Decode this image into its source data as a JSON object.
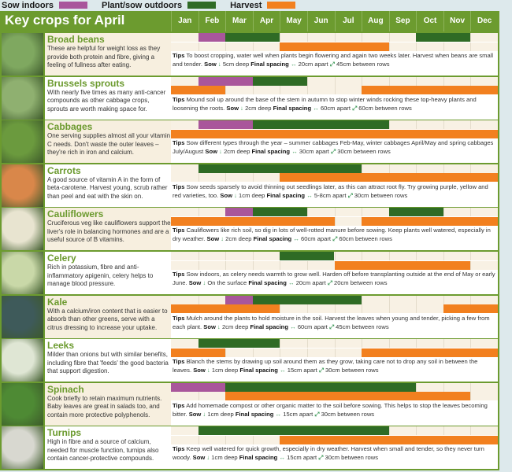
{
  "legend": [
    {
      "label": "Sow indoors",
      "color": "#a9569b"
    },
    {
      "label": "Plant/sow outdoors",
      "color": "#2f6b25"
    },
    {
      "label": "Harvest",
      "color": "#f2801f"
    }
  ],
  "title": "Key crops for April",
  "months": [
    "Jan",
    "Feb",
    "Mar",
    "Apr",
    "May",
    "Jun",
    "Jul",
    "Aug",
    "Sep",
    "Oct",
    "Nov",
    "Dec"
  ],
  "labels": {
    "tips": "Tips",
    "sow": "Sow",
    "final_spacing": "Final spacing"
  },
  "icons": {
    "sow": "down-arrow-icon",
    "apart": "left-right-arrow-icon",
    "rows": "diagonal-arrow-icon"
  },
  "colors": {
    "sow_indoors": "#a9569b",
    "plant_outdoors": "#2f6b25",
    "harvest": "#f2801f",
    "photo": [
      "#7fa860",
      "#8fb070",
      "#6b9a3e",
      "#d9874a",
      "#e8e4d0",
      "#c9d8a8",
      "#3e5a5a",
      "#dfe6d4",
      "#4e8a34",
      "#d8d8d0"
    ]
  },
  "crops": [
    {
      "name": "Broad beans",
      "desc": "These are helpful for weight loss as they provide both protein and fibre, giving a feeling of fullness after eating.",
      "top": [
        [
          1,
          1,
          "s"
        ],
        [
          2,
          3,
          "p"
        ],
        [
          9,
          10,
          "p"
        ]
      ],
      "bottom": [
        [
          4,
          7,
          "h"
        ]
      ],
      "tip": "To boost cropping, water well when plants begin flowering and again two weeks later. Harvest when beans are small and tender.",
      "sow": "5cm deep",
      "apart": "20cm apart",
      "rows": "45cm between rows"
    },
    {
      "name": "Brussels sprouts",
      "desc": "With nearly five times as many anti-cancer compounds as other cabbage crops, sprouts are worth making space for.",
      "top": [
        [
          1,
          2,
          "s"
        ],
        [
          3,
          4,
          "p"
        ]
      ],
      "bottom": [
        [
          0,
          1,
          "h"
        ],
        [
          7,
          11,
          "h"
        ]
      ],
      "tip": "Mound soil up around the base of the stem in autumn to stop winter winds rocking these top-heavy plants and loosening the roots.",
      "sow": "2cm deep",
      "apart": "60cm apart",
      "rows": "60cm between rows"
    },
    {
      "name": "Cabbages",
      "desc": "One serving supplies almost all your vitamin C needs. Don't waste the outer leaves – they're rich in iron and calcium.",
      "top": [
        [
          1,
          2,
          "s"
        ],
        [
          3,
          7,
          "p"
        ]
      ],
      "bottom": [
        [
          0,
          11,
          "h"
        ]
      ],
      "tip": "Sow different types through the year – summer cabbages Feb-May, winter cabbages April/May and spring cabbages July/August",
      "sow": "2cm deep",
      "apart": "30cm apart",
      "rows": "30cm between rows"
    },
    {
      "name": "Carrots",
      "desc": "A good source of vitamin A in the form of beta-carotene. Harvest young, scrub rather than peel and eat with the skin on.",
      "top": [
        [
          1,
          6,
          "p"
        ]
      ],
      "bottom": [
        [
          4,
          11,
          "h"
        ]
      ],
      "tip": "Sow seeds sparsely to avoid thinning out seedlings later, as this can attract root fly. Try growing purple, yellow and red varieties, too.",
      "sow": "1cm deep",
      "apart": "5-8cm apart",
      "rows": "30cm between rows"
    },
    {
      "name": "Cauliflowers",
      "desc": "Cruciferous veg like cauliflowers support the liver's role in balancing hormones and are a useful source of B vitamins.",
      "top": [
        [
          2,
          2,
          "s"
        ],
        [
          3,
          4,
          "p"
        ],
        [
          8,
          9,
          "p"
        ]
      ],
      "bottom": [
        [
          0,
          5,
          "h"
        ],
        [
          7,
          11,
          "h"
        ]
      ],
      "tip": "Cauliflowers like rich soil, so dig in lots of well-rotted manure before sowing. Keep plants well watered, especially in dry weather.",
      "sow": "2cm deep",
      "apart": "60cm apart",
      "rows": "60cm between rows"
    },
    {
      "name": "Celery",
      "desc": "Rich in potassium, fibre and anti-inflammatory apigenin, celery helps to manage blood pressure.",
      "top": [
        [
          4,
          5,
          "p"
        ]
      ],
      "bottom": [
        [
          6,
          10,
          "h"
        ]
      ],
      "tip": "Sow indoors, as celery needs warmth to grow well. Harden off before transplanting outside at the end of May or early June.",
      "sow": "On the surface",
      "apart": "20cm apart",
      "rows": "20cm between rows"
    },
    {
      "name": "Kale",
      "desc": "With a calcium/iron content that is easier to absorb than other greens, serve with a citrus dressing to increase your uptake.",
      "top": [
        [
          2,
          2,
          "s"
        ],
        [
          3,
          6,
          "p"
        ]
      ],
      "bottom": [
        [
          0,
          3,
          "h"
        ],
        [
          10,
          11,
          "h"
        ]
      ],
      "tip": "Mulch around the plants to hold moisture in the soil. Harvest the leaves when young and tender, picking a few from each plant.",
      "sow": "2cm deep",
      "apart": "60cm apart",
      "rows": "45cm between rows"
    },
    {
      "name": "Leeks",
      "desc": "Milder than onions but with similar benefits, including fibre that 'feeds' the good bacteria that support digestion.",
      "top": [
        [
          1,
          3,
          "p"
        ]
      ],
      "bottom": [
        [
          0,
          1,
          "h"
        ],
        [
          7,
          11,
          "h"
        ]
      ],
      "tip": "Blanch the stems by drawing up soil around them as they grow, taking care not to drop any soil in between the leaves.",
      "sow": "1cm deep",
      "apart": "15cm apart",
      "rows": "30cm between rows"
    },
    {
      "name": "Spinach",
      "desc": "Cook briefly to retain maximum nutrients. Baby leaves are great in salads too, and contain more protective polyphenols.",
      "top": [
        [
          0,
          1,
          "s"
        ],
        [
          2,
          8,
          "p"
        ]
      ],
      "bottom": [
        [
          2,
          10,
          "h"
        ]
      ],
      "tip": "Add homemade compost or other organic matter to the soil before sowing. This helps to stop the leaves becoming bitter.",
      "sow": "1cm deep",
      "apart": "15cm apart",
      "rows": "30cm between rows"
    },
    {
      "name": "Turnips",
      "desc": "High in fibre and a source of calcium, needed for muscle function, turnips also contain cancer-protective compounds.",
      "top": [
        [
          1,
          7,
          "p"
        ]
      ],
      "bottom": [
        [
          4,
          11,
          "h"
        ]
      ],
      "tip": "Keep well watered for quick growth, especially in dry weather. Harvest when small and tender, so they never turn woody.",
      "sow": "1cm deep",
      "apart": "15cm apart",
      "rows": "30cm between rows"
    }
  ]
}
